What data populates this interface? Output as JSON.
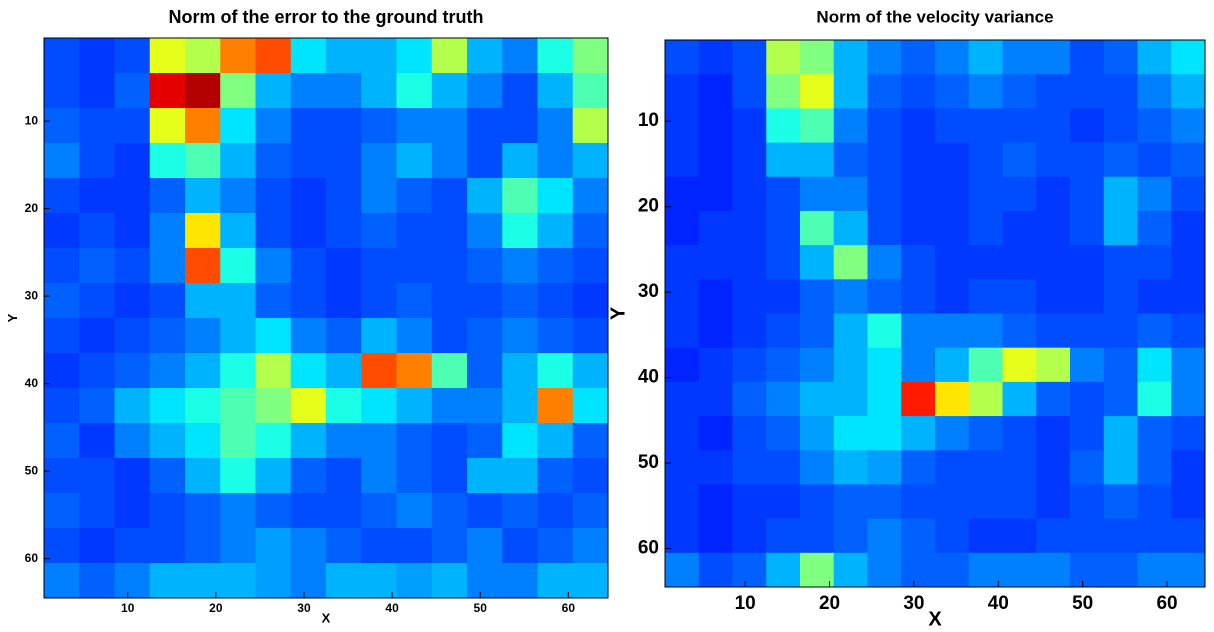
{
  "chart_data": [
    {
      "type": "heatmap",
      "title": "Norm of the error to the ground truth",
      "xlabel": "X",
      "ylabel": "Y",
      "xlim": [
        0.5,
        64.5
      ],
      "ylim": [
        0.5,
        64.5
      ],
      "y_reversed": true,
      "xticks": [
        10,
        20,
        30,
        40,
        50,
        60
      ],
      "yticks": [
        10,
        20,
        30,
        40,
        50,
        60
      ],
      "colormap": "jet",
      "clim": [
        0,
        1
      ],
      "z": [
        [
          0.2,
          0.18,
          0.2,
          0.6,
          0.55,
          0.75,
          0.8,
          0.35,
          0.3,
          0.3,
          0.35,
          0.55,
          0.3,
          0.25,
          0.4,
          0.5
        ],
        [
          0.2,
          0.18,
          0.22,
          0.9,
          0.95,
          0.5,
          0.3,
          0.25,
          0.25,
          0.3,
          0.4,
          0.3,
          0.25,
          0.2,
          0.3,
          0.45
        ],
        [
          0.22,
          0.2,
          0.2,
          0.6,
          0.75,
          0.35,
          0.25,
          0.2,
          0.2,
          0.22,
          0.25,
          0.25,
          0.2,
          0.2,
          0.25,
          0.55
        ],
        [
          0.25,
          0.2,
          0.18,
          0.4,
          0.45,
          0.3,
          0.22,
          0.2,
          0.2,
          0.25,
          0.3,
          0.25,
          0.2,
          0.3,
          0.25,
          0.3
        ],
        [
          0.2,
          0.18,
          0.18,
          0.22,
          0.3,
          0.25,
          0.2,
          0.18,
          0.2,
          0.25,
          0.22,
          0.2,
          0.3,
          0.45,
          0.35,
          0.25
        ],
        [
          0.18,
          0.2,
          0.18,
          0.25,
          0.65,
          0.3,
          0.2,
          0.18,
          0.2,
          0.22,
          0.2,
          0.2,
          0.25,
          0.4,
          0.3,
          0.22
        ],
        [
          0.2,
          0.22,
          0.2,
          0.25,
          0.8,
          0.4,
          0.25,
          0.2,
          0.18,
          0.2,
          0.2,
          0.2,
          0.22,
          0.25,
          0.22,
          0.2
        ],
        [
          0.22,
          0.2,
          0.18,
          0.2,
          0.3,
          0.3,
          0.22,
          0.2,
          0.18,
          0.2,
          0.22,
          0.2,
          0.2,
          0.22,
          0.2,
          0.18
        ],
        [
          0.2,
          0.18,
          0.2,
          0.22,
          0.25,
          0.3,
          0.35,
          0.25,
          0.22,
          0.3,
          0.25,
          0.2,
          0.22,
          0.25,
          0.22,
          0.2
        ],
        [
          0.18,
          0.2,
          0.22,
          0.25,
          0.3,
          0.4,
          0.55,
          0.35,
          0.3,
          0.8,
          0.75,
          0.45,
          0.22,
          0.3,
          0.4,
          0.3
        ],
        [
          0.2,
          0.22,
          0.3,
          0.35,
          0.4,
          0.45,
          0.5,
          0.6,
          0.4,
          0.35,
          0.3,
          0.25,
          0.25,
          0.3,
          0.75,
          0.35
        ],
        [
          0.22,
          0.18,
          0.25,
          0.3,
          0.35,
          0.45,
          0.4,
          0.3,
          0.25,
          0.25,
          0.22,
          0.2,
          0.22,
          0.35,
          0.3,
          0.22
        ],
        [
          0.2,
          0.2,
          0.18,
          0.22,
          0.3,
          0.4,
          0.3,
          0.22,
          0.2,
          0.25,
          0.22,
          0.2,
          0.3,
          0.3,
          0.22,
          0.2
        ],
        [
          0.22,
          0.2,
          0.18,
          0.2,
          0.22,
          0.25,
          0.22,
          0.2,
          0.2,
          0.22,
          0.25,
          0.22,
          0.2,
          0.22,
          0.2,
          0.22
        ],
        [
          0.2,
          0.18,
          0.2,
          0.2,
          0.22,
          0.25,
          0.28,
          0.25,
          0.22,
          0.2,
          0.2,
          0.22,
          0.25,
          0.2,
          0.22,
          0.25
        ],
        [
          0.25,
          0.22,
          0.25,
          0.3,
          0.3,
          0.3,
          0.28,
          0.25,
          0.3,
          0.3,
          0.28,
          0.3,
          0.25,
          0.25,
          0.3,
          0.3
        ]
      ]
    },
    {
      "type": "heatmap",
      "title": "Norm of the velocity variance",
      "xlabel": "X",
      "ylabel": "Y",
      "xlim": [
        0.5,
        64.5
      ],
      "ylim": [
        0.5,
        64.5
      ],
      "y_reversed": true,
      "xticks": [
        10,
        20,
        30,
        40,
        50,
        60
      ],
      "yticks": [
        10,
        20,
        30,
        40,
        50,
        60
      ],
      "colormap": "jet",
      "clim": [
        0,
        1
      ],
      "z": [
        [
          0.2,
          0.18,
          0.2,
          0.55,
          0.5,
          0.3,
          0.25,
          0.22,
          0.25,
          0.3,
          0.25,
          0.25,
          0.2,
          0.22,
          0.3,
          0.35
        ],
        [
          0.18,
          0.16,
          0.2,
          0.5,
          0.6,
          0.3,
          0.22,
          0.2,
          0.22,
          0.25,
          0.22,
          0.2,
          0.2,
          0.2,
          0.25,
          0.3
        ],
        [
          0.18,
          0.16,
          0.18,
          0.4,
          0.45,
          0.25,
          0.2,
          0.18,
          0.2,
          0.2,
          0.2,
          0.2,
          0.18,
          0.2,
          0.22,
          0.25
        ],
        [
          0.18,
          0.16,
          0.18,
          0.3,
          0.3,
          0.22,
          0.2,
          0.18,
          0.18,
          0.2,
          0.22,
          0.2,
          0.2,
          0.22,
          0.2,
          0.22
        ],
        [
          0.16,
          0.16,
          0.18,
          0.2,
          0.25,
          0.25,
          0.2,
          0.18,
          0.18,
          0.2,
          0.2,
          0.18,
          0.2,
          0.3,
          0.25,
          0.2
        ],
        [
          0.16,
          0.18,
          0.18,
          0.2,
          0.45,
          0.3,
          0.2,
          0.18,
          0.18,
          0.2,
          0.18,
          0.18,
          0.2,
          0.3,
          0.22,
          0.18
        ],
        [
          0.18,
          0.18,
          0.18,
          0.2,
          0.3,
          0.5,
          0.25,
          0.2,
          0.18,
          0.18,
          0.18,
          0.18,
          0.18,
          0.2,
          0.2,
          0.18
        ],
        [
          0.18,
          0.16,
          0.18,
          0.18,
          0.22,
          0.25,
          0.22,
          0.2,
          0.18,
          0.2,
          0.2,
          0.18,
          0.18,
          0.2,
          0.18,
          0.18
        ],
        [
          0.18,
          0.16,
          0.18,
          0.2,
          0.22,
          0.3,
          0.4,
          0.25,
          0.25,
          0.25,
          0.22,
          0.2,
          0.2,
          0.2,
          0.22,
          0.2
        ],
        [
          0.16,
          0.18,
          0.2,
          0.22,
          0.25,
          0.3,
          0.35,
          0.25,
          0.3,
          0.45,
          0.6,
          0.55,
          0.25,
          0.22,
          0.35,
          0.25
        ],
        [
          0.18,
          0.18,
          0.22,
          0.25,
          0.3,
          0.3,
          0.35,
          0.85,
          0.65,
          0.55,
          0.3,
          0.22,
          0.2,
          0.22,
          0.4,
          0.25
        ],
        [
          0.18,
          0.16,
          0.2,
          0.22,
          0.28,
          0.35,
          0.35,
          0.3,
          0.25,
          0.22,
          0.2,
          0.18,
          0.2,
          0.3,
          0.22,
          0.2
        ],
        [
          0.18,
          0.18,
          0.2,
          0.2,
          0.25,
          0.3,
          0.28,
          0.22,
          0.2,
          0.2,
          0.2,
          0.18,
          0.22,
          0.3,
          0.22,
          0.18
        ],
        [
          0.18,
          0.16,
          0.18,
          0.18,
          0.2,
          0.22,
          0.22,
          0.2,
          0.2,
          0.2,
          0.2,
          0.18,
          0.2,
          0.22,
          0.2,
          0.18
        ],
        [
          0.18,
          0.16,
          0.18,
          0.2,
          0.2,
          0.22,
          0.25,
          0.22,
          0.2,
          0.18,
          0.18,
          0.2,
          0.2,
          0.2,
          0.2,
          0.2
        ],
        [
          0.25,
          0.2,
          0.22,
          0.3,
          0.5,
          0.3,
          0.25,
          0.22,
          0.22,
          0.25,
          0.25,
          0.25,
          0.22,
          0.22,
          0.25,
          0.25
        ]
      ]
    }
  ]
}
